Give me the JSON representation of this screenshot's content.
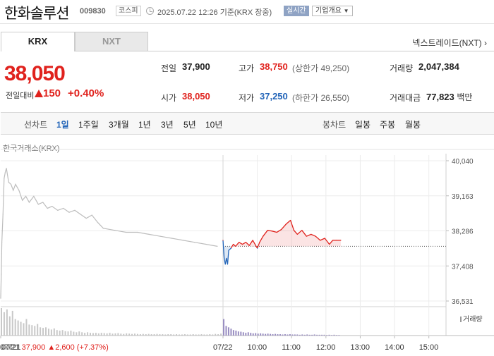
{
  "header": {
    "company": "한화솔루션",
    "code": "009830",
    "market": "코스피",
    "timestamp": "2025.07.22 12:26 기준(KRX 장중)",
    "realtime_label": "실시간",
    "overview_label": "기업개요"
  },
  "tabs": [
    {
      "label": "KRX",
      "selected": true
    },
    {
      "label": "NXT",
      "selected": false
    }
  ],
  "nxt_link": "넥스트레이드(NXT)",
  "quote": {
    "price": "38,050",
    "change_label": "전일대비",
    "change": "150",
    "change_pct": "+0.40%",
    "change_direction": "up"
  },
  "stats": {
    "prev_close": {
      "label": "전일",
      "value": "37,900"
    },
    "high": {
      "label": "고가",
      "value": "38,750",
      "limit_text": "(상한가 49,250)"
    },
    "volume": {
      "label": "거래량",
      "value": "2,047,384"
    },
    "open": {
      "label": "시가",
      "value": "38,050"
    },
    "low": {
      "label": "저가",
      "value": "37,250",
      "limit_text": "(하한가 26,550)"
    },
    "amount": {
      "label": "거래대금",
      "value": "77,823",
      "unit": "백만"
    }
  },
  "periods": {
    "line_chart_label": "선차트",
    "line_options": [
      "1일",
      "1주일",
      "3개월",
      "1년",
      "3년",
      "5년",
      "10년"
    ],
    "selected": "1일",
    "candle_chart_label": "봉차트",
    "candle_options": [
      "일봉",
      "주봉",
      "월봉"
    ]
  },
  "chart_source": "한국거래소(KRX)",
  "volume_legend": "거래량",
  "prev_day_summary": {
    "date": "07/21",
    "close": "37,900",
    "change": "2,600",
    "pct": "(+7.37%)"
  },
  "colors": {
    "up": "#e0221d",
    "down": "#2264b8",
    "prev_line": "#bdbdbd"
  },
  "chart_data": {
    "type": "line",
    "title": "",
    "xlabel": "",
    "ylabel": "",
    "ylim": [
      36531,
      40040
    ],
    "y_ticks": [
      "40,040",
      "39,163",
      "38,286",
      "37,408",
      "36,531"
    ],
    "x_ticks": [
      "07/21",
      "07/22",
      "10:00",
      "11:00",
      "12:00",
      "13:00",
      "14:00",
      "15:00"
    ],
    "reference_value": 37900,
    "grid": true,
    "series": [
      {
        "name": "07/21",
        "points": [
          [
            "09:00",
            36600
          ],
          [
            "09:01",
            37200
          ],
          [
            "09:02",
            38000
          ],
          [
            "09:04",
            38700
          ],
          [
            "09:06",
            39600
          ],
          [
            "09:08",
            39750
          ],
          [
            "09:10",
            39850
          ],
          [
            "09:14",
            39500
          ],
          [
            "09:18",
            39450
          ],
          [
            "09:22",
            39300
          ],
          [
            "09:26",
            39450
          ],
          [
            "09:32",
            39300
          ],
          [
            "09:38",
            39050
          ],
          [
            "09:44",
            39150
          ],
          [
            "09:50",
            39000
          ],
          [
            "09:58",
            39150
          ],
          [
            "10:06",
            38950
          ],
          [
            "10:14",
            39000
          ],
          [
            "10:22",
            38850
          ],
          [
            "10:30",
            38900
          ],
          [
            "10:40",
            38800
          ],
          [
            "10:50",
            38850
          ],
          [
            "11:00",
            38750
          ],
          [
            "11:10",
            38800
          ],
          [
            "11:20",
            38700
          ],
          [
            "11:30",
            38600
          ],
          [
            "11:40",
            38680
          ],
          [
            "11:50",
            38500
          ],
          [
            "12:00",
            38350
          ],
          [
            "12:20",
            38300
          ],
          [
            "12:40",
            38250
          ],
          [
            "13:00",
            38250
          ],
          [
            "13:20",
            38200
          ],
          [
            "13:40",
            38150
          ],
          [
            "14:00",
            38100
          ],
          [
            "14:20",
            38050
          ],
          [
            "14:40",
            38000
          ],
          [
            "15:00",
            37950
          ],
          [
            "15:20",
            37900
          ]
        ]
      },
      {
        "name": "07/22",
        "points": [
          [
            "09:00",
            38050
          ],
          [
            "09:02",
            37600
          ],
          [
            "09:04",
            37450
          ],
          [
            "09:06",
            37600
          ],
          [
            "09:08",
            37450
          ],
          [
            "09:10",
            37800
          ],
          [
            "09:14",
            37850
          ],
          [
            "09:18",
            37950
          ],
          [
            "09:22",
            37900
          ],
          [
            "09:28",
            38000
          ],
          [
            "09:34",
            37950
          ],
          [
            "09:40",
            38000
          ],
          [
            "09:46",
            37920
          ],
          [
            "09:52",
            38050
          ],
          [
            "10:00",
            37850
          ],
          [
            "10:04",
            38000
          ],
          [
            "10:10",
            38150
          ],
          [
            "10:18",
            38300
          ],
          [
            "10:26",
            38280
          ],
          [
            "10:34",
            38250
          ],
          [
            "10:42",
            38320
          ],
          [
            "10:50",
            38450
          ],
          [
            "10:58",
            38550
          ],
          [
            "11:04",
            38300
          ],
          [
            "11:10",
            38200
          ],
          [
            "11:18",
            38300
          ],
          [
            "11:26",
            38150
          ],
          [
            "11:34",
            38200
          ],
          [
            "11:42",
            38150
          ],
          [
            "11:50",
            38050
          ],
          [
            "11:58",
            38100
          ],
          [
            "12:06",
            37950
          ],
          [
            "12:12",
            38050
          ],
          [
            "12:18",
            38050
          ],
          [
            "12:26",
            38050
          ]
        ]
      }
    ],
    "volume": {
      "name": "거래량",
      "day1_profile": [
        1.0,
        0.85,
        0.95,
        0.7,
        0.9,
        0.6,
        0.55,
        0.5,
        0.45,
        0.6,
        0.4,
        0.38,
        0.35,
        0.42,
        0.3,
        0.28,
        0.3,
        0.25,
        0.22,
        0.26,
        0.2,
        0.18,
        0.2,
        0.16,
        0.15,
        0.18,
        0.14,
        0.12,
        0.15,
        0.12,
        0.1,
        0.12,
        0.1,
        0.09,
        0.1,
        0.08,
        0.1,
        0.09,
        0.08,
        0.1,
        0.07,
        0.08,
        0.09,
        0.07,
        0.06,
        0.08,
        0.07,
        0.06,
        0.07,
        0.06,
        0.05,
        0.06,
        0.05,
        0.06,
        0.05,
        0.05,
        0.06,
        0.05,
        0.05,
        0.04,
        0.05,
        0.05,
        0.04,
        0.05,
        0.04,
        0.04,
        0.05,
        0.04,
        0.04,
        0.05,
        0.04,
        0.04,
        0.05,
        0.04,
        0.04,
        0.05,
        0.04,
        0.06,
        0.05,
        0.07
      ],
      "day2_profile": [
        0.6,
        0.35,
        0.3,
        0.25,
        0.2,
        0.18,
        0.15,
        0.14,
        0.12,
        0.1,
        0.12,
        0.1,
        0.08,
        0.09,
        0.07,
        0.08,
        0.07,
        0.06,
        0.07,
        0.06,
        0.05,
        0.06,
        0.05,
        0.05,
        0.04,
        0.05,
        0.04,
        0.05,
        0.04,
        0.04,
        0.04,
        0.03,
        0.04,
        0.03,
        0.04,
        0.03,
        0.03,
        0.04,
        0.03,
        0.03,
        0.03,
        0.03,
        0.02,
        0.03,
        0.02,
        0.03,
        0.02,
        0.02
      ]
    }
  }
}
